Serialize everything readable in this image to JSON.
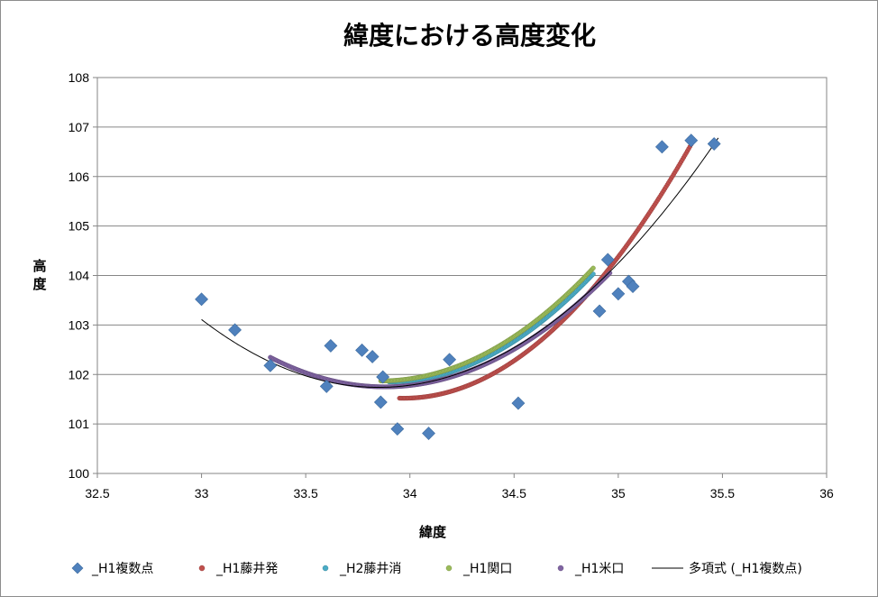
{
  "chart_data": {
    "type": "scatter",
    "title": "緯度における高度変化",
    "xlabel": "緯度",
    "ylabel": "高度",
    "xlim": [
      32.5,
      36
    ],
    "ylim": [
      100,
      108
    ],
    "x_ticks": [
      "32.5",
      "33",
      "33.5",
      "34",
      "34.5",
      "35",
      "35.5",
      "36"
    ],
    "y_ticks": [
      "100",
      "101",
      "102",
      "103",
      "104",
      "105",
      "106",
      "107",
      "108"
    ],
    "grid": "horizontal",
    "legend_position": "bottom",
    "series": [
      {
        "name": "_H1複数点",
        "marker": "diamond",
        "color": "#4f81bd",
        "points": [
          [
            33.0,
            103.52
          ],
          [
            33.16,
            102.9
          ],
          [
            33.33,
            102.18
          ],
          [
            33.6,
            101.76
          ],
          [
            33.62,
            102.58
          ],
          [
            33.77,
            102.49
          ],
          [
            33.82,
            102.36
          ],
          [
            33.86,
            101.44
          ],
          [
            33.87,
            101.95
          ],
          [
            33.94,
            100.9
          ],
          [
            34.09,
            100.81
          ],
          [
            34.19,
            102.3
          ],
          [
            34.52,
            101.42
          ],
          [
            34.91,
            103.28
          ],
          [
            34.95,
            104.32
          ],
          [
            35.0,
            103.63
          ],
          [
            35.05,
            103.88
          ],
          [
            35.07,
            103.78
          ],
          [
            35.21,
            106.6
          ],
          [
            35.35,
            106.73
          ],
          [
            35.46,
            106.66
          ]
        ]
      },
      {
        "name": "_H1藤井発",
        "marker": "dot",
        "color": "#c0504d",
        "curve": {
          "x_start": 33.95,
          "x_end": 35.35,
          "vertex_x": 33.97,
          "vertex_y": 101.52,
          "end_y": 106.65
        }
      },
      {
        "name": "_H2藤井消",
        "marker": "dot",
        "color": "#4bacc6",
        "curve": {
          "x_start": 33.9,
          "x_end": 34.88,
          "vertex_x": 33.9,
          "vertex_y": 101.85,
          "end_y": 104.03
        }
      },
      {
        "name": "_H1関口",
        "marker": "dot",
        "color": "#9bbb59",
        "curve": {
          "x_start": 33.86,
          "x_end": 34.88,
          "vertex_x": 33.86,
          "vertex_y": 101.87,
          "end_y": 104.15
        }
      },
      {
        "name": "_H1米口",
        "marker": "dot",
        "color": "#8064a2",
        "curve": {
          "x_start": 33.33,
          "x_end": 34.96,
          "vertex_x": 33.88,
          "vertex_y": 101.75,
          "end_y": 104.05
        }
      },
      {
        "name": "多項式 (_H1複数点)",
        "marker": "line",
        "color": "#000000",
        "curve": {
          "x_start": 33.0,
          "x_end": 35.48,
          "vertex_x": 33.85,
          "vertex_y": 101.74,
          "end_y": 106.78
        }
      }
    ]
  }
}
